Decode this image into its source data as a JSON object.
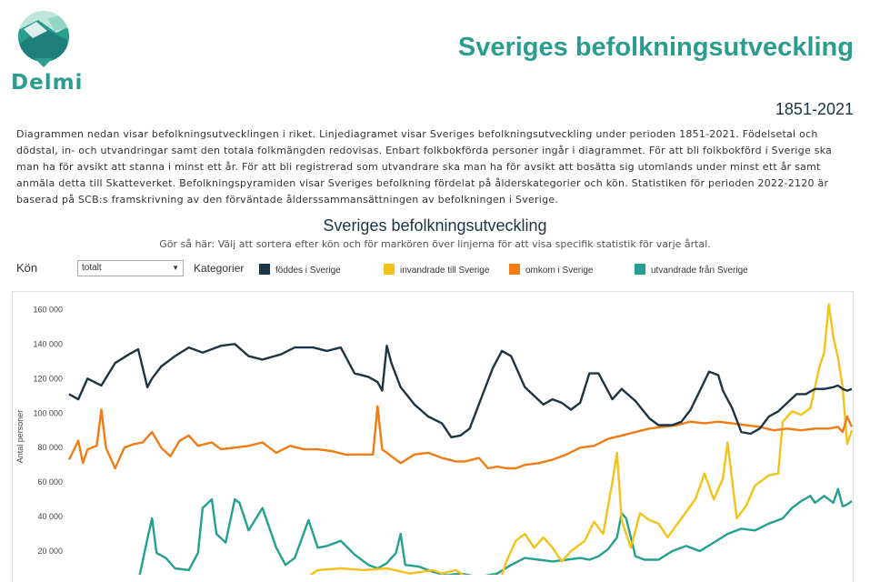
{
  "header": {
    "logo_text": "Delmi",
    "title": "Sveriges befolkningsutveckling",
    "period": "1851-2021"
  },
  "intro": {
    "text": "Diagrammen nedan visar befolkningsutvecklingen i riket. Linjediagramet visar Sveriges befolkningsutveckling under perioden 1851-2021. Födelsetal och dödstal, in- och utvandringar samt den totala folkmängden redovisas. Enbart folkbokförda personer ingår i diagrammet. För att bli folkbokförd i Sverige ska man ha för avsikt att stanna i minst ett år. För att bli registrerad som utvandrare ska man ha för avsikt att bosätta sig utomlands under minst ett år samt anmäla detta till Skatteverket. Befolkningspyramiden visar Sveriges befolkning fördelat på ålderskategorier och kön. Statistiken för perioden 2022-2120 är baserad på SCB:s framskrivning av den förväntade ålderssammansättningen av befolkningen i Sverige."
  },
  "controls": {
    "kon_label": "Kön",
    "kon_selected": "totalt",
    "kategorier_label": "Kategorier"
  },
  "colors": {
    "teal_brand": "#2a9d8f",
    "fodda": "#1c3443",
    "invandrade": "#f5c21a",
    "omkom": "#f07c13",
    "utvandrade": "#23a08e"
  },
  "chart_data": {
    "type": "line",
    "title": "Sveriges befolkningsutveckling",
    "subtitle": "Gör så här: Välj att sortera efter kön och för markören över linjerna för att visa specifik statistik för varje årtal.",
    "xlabel": "",
    "ylabel": "Antal personer",
    "x_range": [
      1851,
      2021
    ],
    "ylim": [
      0,
      170000
    ],
    "y_ticks": [
      20000,
      40000,
      60000,
      80000,
      100000,
      120000,
      140000,
      160000
    ],
    "y_tick_labels": [
      "20 000",
      "40 000",
      "60 000",
      "80 000",
      "100 000",
      "120 000",
      "140 000",
      "160 000"
    ],
    "grid": false,
    "legend_position": "top",
    "series": [
      {
        "name": "föddes i Sverige",
        "color": "#1c3443",
        "points": [
          [
            1851,
            111000
          ],
          [
            1853,
            108000
          ],
          [
            1855,
            120000
          ],
          [
            1858,
            116000
          ],
          [
            1861,
            129000
          ],
          [
            1864,
            134000
          ],
          [
            1866,
            137000
          ],
          [
            1868,
            115000
          ],
          [
            1869,
            120000
          ],
          [
            1871,
            127000
          ],
          [
            1874,
            133000
          ],
          [
            1877,
            138000
          ],
          [
            1880,
            135000
          ],
          [
            1884,
            139000
          ],
          [
            1887,
            140000
          ],
          [
            1890,
            133000
          ],
          [
            1893,
            131000
          ],
          [
            1897,
            134000
          ],
          [
            1900,
            138000
          ],
          [
            1904,
            138000
          ],
          [
            1907,
            136000
          ],
          [
            1910,
            138000
          ],
          [
            1913,
            123000
          ],
          [
            1916,
            121000
          ],
          [
            1918,
            118000
          ],
          [
            1919,
            113000
          ],
          [
            1920,
            139000
          ],
          [
            1921,
            129000
          ],
          [
            1923,
            115000
          ],
          [
            1926,
            105000
          ],
          [
            1929,
            98000
          ],
          [
            1932,
            94000
          ],
          [
            1934,
            86000
          ],
          [
            1936,
            87000
          ],
          [
            1938,
            91000
          ],
          [
            1941,
            112000
          ],
          [
            1943,
            126000
          ],
          [
            1945,
            136000
          ],
          [
            1947,
            133000
          ],
          [
            1950,
            115000
          ],
          [
            1952,
            110000
          ],
          [
            1954,
            105000
          ],
          [
            1956,
            108000
          ],
          [
            1958,
            106000
          ],
          [
            1960,
            102000
          ],
          [
            1962,
            106000
          ],
          [
            1964,
            123000
          ],
          [
            1966,
            123000
          ],
          [
            1967,
            118000
          ],
          [
            1969,
            108000
          ],
          [
            1971,
            114000
          ],
          [
            1974,
            107000
          ],
          [
            1977,
            97000
          ],
          [
            1979,
            93000
          ],
          [
            1982,
            93000
          ],
          [
            1984,
            95000
          ],
          [
            1986,
            102000
          ],
          [
            1988,
            113000
          ],
          [
            1990,
            124000
          ],
          [
            1992,
            122000
          ],
          [
            1993,
            113000
          ],
          [
            1995,
            103000
          ],
          [
            1997,
            89000
          ],
          [
            1999,
            88000
          ],
          [
            2001,
            91000
          ],
          [
            2003,
            98000
          ],
          [
            2005,
            101000
          ],
          [
            2007,
            106000
          ],
          [
            2009,
            111000
          ],
          [
            2011,
            111000
          ],
          [
            2013,
            114000
          ],
          [
            2015,
            114000
          ],
          [
            2017,
            115000
          ],
          [
            2018,
            116000
          ],
          [
            2019,
            114000
          ],
          [
            2020,
            113000
          ],
          [
            2021,
            114000
          ]
        ]
      },
      {
        "name": "invandrade till Sverige",
        "color": "#f5c21a",
        "points": [
          [
            1875,
            0
          ],
          [
            1900,
            0
          ],
          [
            1905,
            9000
          ],
          [
            1910,
            10000
          ],
          [
            1915,
            9000
          ],
          [
            1920,
            10000
          ],
          [
            1925,
            7000
          ],
          [
            1930,
            9000
          ],
          [
            1932,
            7000
          ],
          [
            1935,
            9000
          ],
          [
            1940,
            0
          ],
          [
            1945,
            6000
          ],
          [
            1946,
            14000
          ],
          [
            1948,
            26000
          ],
          [
            1950,
            30000
          ],
          [
            1952,
            22000
          ],
          [
            1954,
            28000
          ],
          [
            1956,
            22000
          ],
          [
            1958,
            14000
          ],
          [
            1960,
            20000
          ],
          [
            1963,
            26000
          ],
          [
            1965,
            37000
          ],
          [
            1967,
            30000
          ],
          [
            1969,
            60000
          ],
          [
            1970,
            77000
          ],
          [
            1971,
            38000
          ],
          [
            1973,
            22000
          ],
          [
            1975,
            42000
          ],
          [
            1977,
            38000
          ],
          [
            1979,
            36000
          ],
          [
            1981,
            28000
          ],
          [
            1984,
            39000
          ],
          [
            1987,
            50000
          ],
          [
            1989,
            65000
          ],
          [
            1991,
            50000
          ],
          [
            1993,
            62000
          ],
          [
            1994,
            83000
          ],
          [
            1996,
            39000
          ],
          [
            1998,
            46000
          ],
          [
            2000,
            58000
          ],
          [
            2003,
            64000
          ],
          [
            2005,
            65000
          ],
          [
            2006,
            95000
          ],
          [
            2008,
            101000
          ],
          [
            2010,
            99000
          ],
          [
            2012,
            103000
          ],
          [
            2013,
            115000
          ],
          [
            2014,
            127000
          ],
          [
            2015,
            135000
          ],
          [
            2016,
            163000
          ],
          [
            2017,
            144000
          ],
          [
            2018,
            132000
          ],
          [
            2019,
            115000
          ],
          [
            2020,
            82000
          ],
          [
            2021,
            90000
          ]
        ]
      },
      {
        "name": "omkom i Sverige",
        "color": "#f07c13",
        "points": [
          [
            1851,
            73000
          ],
          [
            1853,
            84000
          ],
          [
            1854,
            71000
          ],
          [
            1855,
            79000
          ],
          [
            1857,
            81000
          ],
          [
            1858,
            102000
          ],
          [
            1859,
            80000
          ],
          [
            1861,
            68000
          ],
          [
            1863,
            80000
          ],
          [
            1865,
            82000
          ],
          [
            1867,
            83000
          ],
          [
            1869,
            89000
          ],
          [
            1871,
            80000
          ],
          [
            1873,
            75000
          ],
          [
            1875,
            84000
          ],
          [
            1877,
            87000
          ],
          [
            1879,
            81000
          ],
          [
            1882,
            83000
          ],
          [
            1884,
            79000
          ],
          [
            1887,
            80000
          ],
          [
            1890,
            81000
          ],
          [
            1893,
            83000
          ],
          [
            1896,
            77000
          ],
          [
            1899,
            81000
          ],
          [
            1902,
            79000
          ],
          [
            1905,
            79000
          ],
          [
            1908,
            78000
          ],
          [
            1911,
            76000
          ],
          [
            1914,
            76000
          ],
          [
            1917,
            76000
          ],
          [
            1918,
            104000
          ],
          [
            1919,
            79000
          ],
          [
            1921,
            75000
          ],
          [
            1923,
            71000
          ],
          [
            1926,
            76000
          ],
          [
            1929,
            77000
          ],
          [
            1932,
            74000
          ],
          [
            1935,
            72000
          ],
          [
            1937,
            72000
          ],
          [
            1940,
            74000
          ],
          [
            1942,
            68000
          ],
          [
            1944,
            69000
          ],
          [
            1946,
            68000
          ],
          [
            1948,
            68000
          ],
          [
            1950,
            70000
          ],
          [
            1953,
            71000
          ],
          [
            1956,
            73000
          ],
          [
            1959,
            76000
          ],
          [
            1962,
            80000
          ],
          [
            1965,
            81000
          ],
          [
            1968,
            85000
          ],
          [
            1971,
            87000
          ],
          [
            1974,
            89000
          ],
          [
            1977,
            91000
          ],
          [
            1980,
            92000
          ],
          [
            1983,
            93000
          ],
          [
            1986,
            95000
          ],
          [
            1989,
            94000
          ],
          [
            1992,
            95000
          ],
          [
            1995,
            94000
          ],
          [
            1998,
            93000
          ],
          [
            2001,
            92000
          ],
          [
            2004,
            90000
          ],
          [
            2007,
            91000
          ],
          [
            2010,
            90000
          ],
          [
            2013,
            91000
          ],
          [
            2016,
            91000
          ],
          [
            2018,
            92000
          ],
          [
            2019,
            89000
          ],
          [
            2020,
            98000
          ],
          [
            2021,
            92000
          ]
        ]
      },
      {
        "name": "utvandrade från Sverige",
        "color": "#23a08e",
        "points": [
          [
            1851,
            0
          ],
          [
            1864,
            0
          ],
          [
            1866,
            2000
          ],
          [
            1868,
            27000
          ],
          [
            1869,
            39000
          ],
          [
            1870,
            19000
          ],
          [
            1872,
            16000
          ],
          [
            1874,
            10000
          ],
          [
            1877,
            9000
          ],
          [
            1879,
            19000
          ],
          [
            1880,
            45000
          ],
          [
            1882,
            50000
          ],
          [
            1883,
            30000
          ],
          [
            1885,
            25000
          ],
          [
            1887,
            50000
          ],
          [
            1888,
            48000
          ],
          [
            1890,
            32000
          ],
          [
            1893,
            45000
          ],
          [
            1896,
            22000
          ],
          [
            1898,
            12000
          ],
          [
            1900,
            16000
          ],
          [
            1903,
            38000
          ],
          [
            1905,
            22000
          ],
          [
            1907,
            23000
          ],
          [
            1910,
            26000
          ],
          [
            1913,
            18000
          ],
          [
            1916,
            12000
          ],
          [
            1918,
            10000
          ],
          [
            1920,
            13000
          ],
          [
            1922,
            19000
          ],
          [
            1923,
            30000
          ],
          [
            1924,
            12000
          ],
          [
            1927,
            11000
          ],
          [
            1930,
            8000
          ],
          [
            1933,
            6000
          ],
          [
            1936,
            7000
          ],
          [
            1940,
            5000
          ],
          [
            1944,
            7000
          ],
          [
            1947,
            12000
          ],
          [
            1950,
            16000
          ],
          [
            1953,
            15000
          ],
          [
            1956,
            14000
          ],
          [
            1959,
            15000
          ],
          [
            1962,
            16000
          ],
          [
            1964,
            15000
          ],
          [
            1966,
            17000
          ],
          [
            1968,
            21000
          ],
          [
            1970,
            28000
          ],
          [
            1971,
            42000
          ],
          [
            1972,
            39000
          ],
          [
            1974,
            17000
          ],
          [
            1976,
            15000
          ],
          [
            1979,
            15000
          ],
          [
            1982,
            20000
          ],
          [
            1985,
            23000
          ],
          [
            1988,
            20000
          ],
          [
            1991,
            25000
          ],
          [
            1994,
            30000
          ],
          [
            1997,
            33000
          ],
          [
            2000,
            32000
          ],
          [
            2003,
            36000
          ],
          [
            2006,
            39000
          ],
          [
            2008,
            45000
          ],
          [
            2010,
            49000
          ],
          [
            2012,
            52000
          ],
          [
            2013,
            48000
          ],
          [
            2015,
            52000
          ],
          [
            2017,
            48000
          ],
          [
            2018,
            56000
          ],
          [
            2019,
            46000
          ],
          [
            2020,
            47000
          ],
          [
            2021,
            49000
          ]
        ]
      }
    ]
  }
}
